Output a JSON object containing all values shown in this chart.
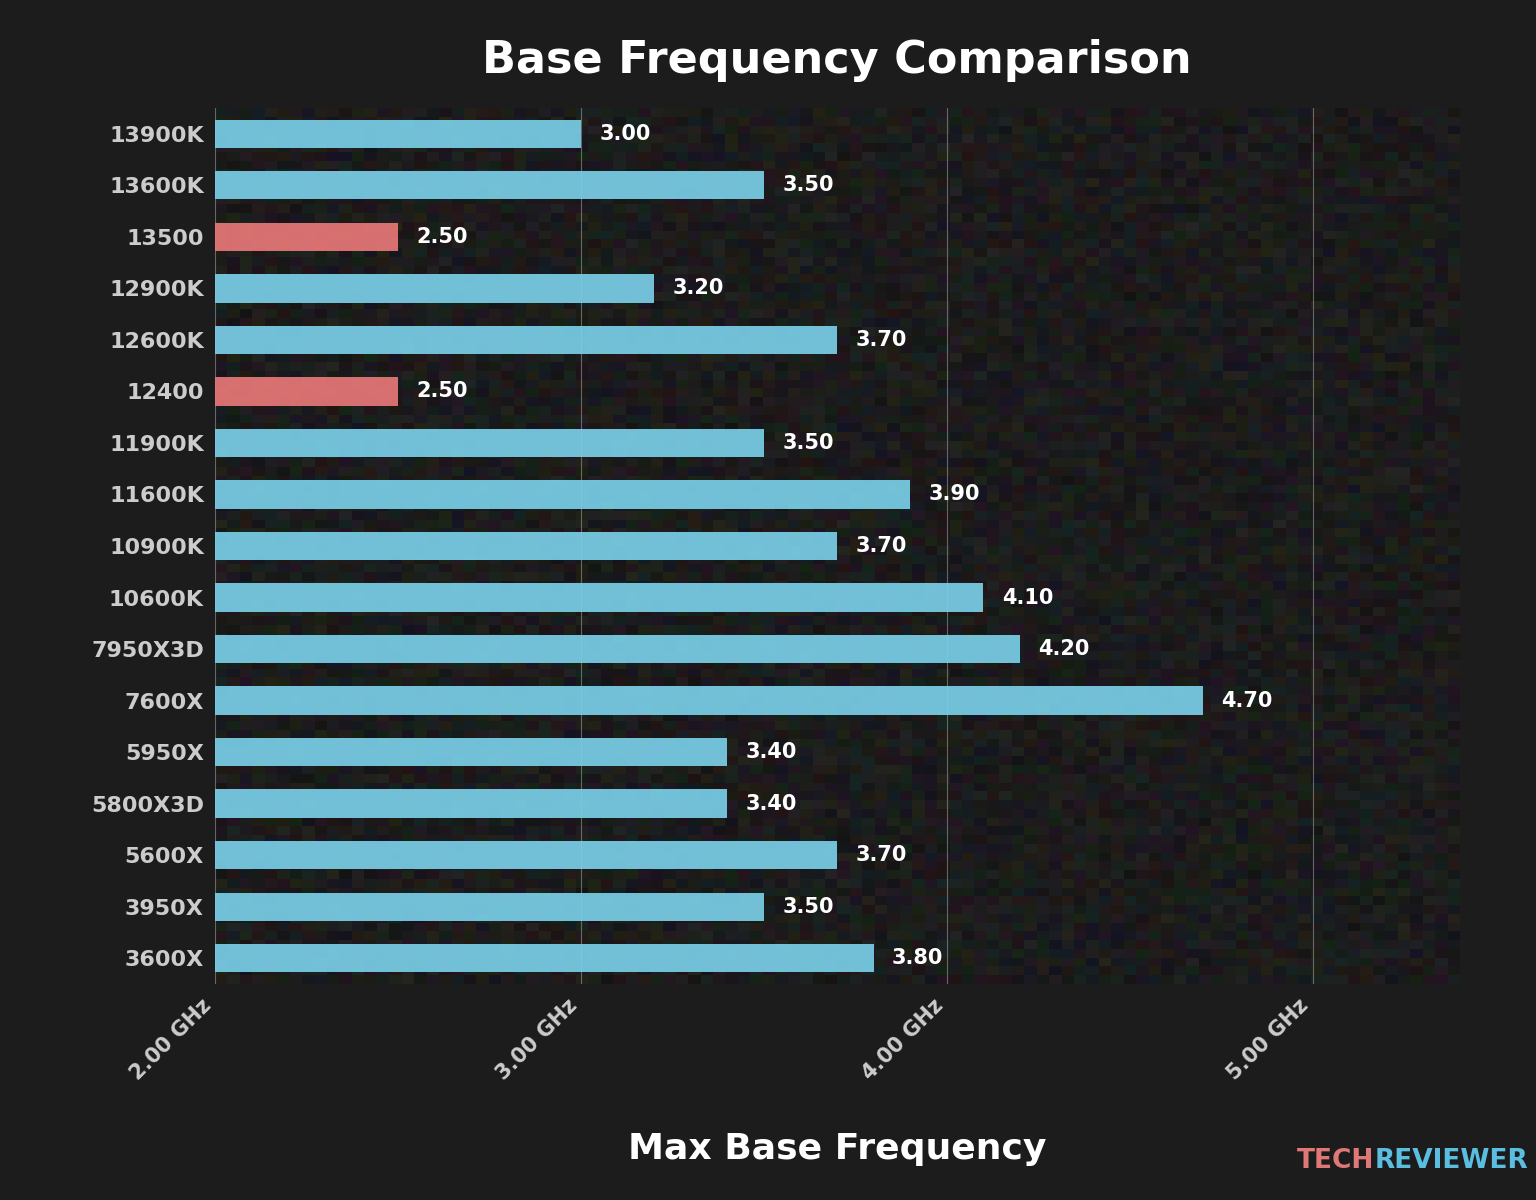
{
  "title": "Base Frequency Comparison",
  "xlabel": "Max Base Frequency",
  "categories": [
    "13900K",
    "13600K",
    "13500",
    "12900K",
    "12600K",
    "12400",
    "11900K",
    "11600K",
    "10900K",
    "10600K",
    "7950X3D",
    "7600X",
    "5950X",
    "5800X3D",
    "5600X",
    "3950X",
    "3600X"
  ],
  "values": [
    3.0,
    3.5,
    2.5,
    3.2,
    3.7,
    2.5,
    3.5,
    3.9,
    3.7,
    4.1,
    4.2,
    4.7,
    3.4,
    3.4,
    3.7,
    3.5,
    3.8
  ],
  "bar_colors": [
    "#7acfe8",
    "#7acfe8",
    "#e87878",
    "#7acfe8",
    "#7acfe8",
    "#e87878",
    "#7acfe8",
    "#7acfe8",
    "#7acfe8",
    "#7acfe8",
    "#7acfe8",
    "#7acfe8",
    "#7acfe8",
    "#7acfe8",
    "#7acfe8",
    "#7acfe8",
    "#7acfe8"
  ],
  "label_colors": [
    "#5bc8e8",
    "#5bc8e8",
    "#e88888",
    "#5bc8e8",
    "#5bc8e8",
    "#e88888",
    "#5bc8e8",
    "#5bc8e8",
    "#5bc8e8",
    "#5bc8e8",
    "#e89888",
    "#e89898",
    "#e89898",
    "#e89898",
    "#e89898",
    "#e89898",
    "#e89898"
  ],
  "xlim": [
    2.0,
    5.4
  ],
  "xticks": [
    2.0,
    3.0,
    4.0,
    5.0
  ],
  "xtick_labels": [
    "2.00 GHz",
    "3.00 GHz",
    "4.00 GHz",
    "5.00 GHz"
  ],
  "bg_color": "#1c1c1c",
  "bar_height": 0.55,
  "value_color": "#ffffff",
  "title_color": "#ffffff",
  "xlabel_color": "#ffffff",
  "tech_color": "#e07878",
  "reviewer_color": "#5bbde0"
}
